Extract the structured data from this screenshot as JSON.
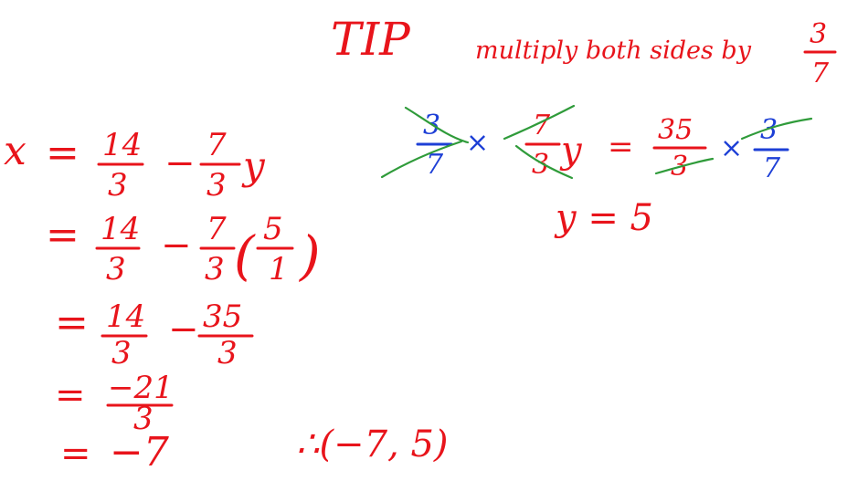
{
  "tip": {
    "title": "TIP",
    "text": "multiply both sides by",
    "fraction": {
      "numerator": "3",
      "denominator": "7"
    }
  },
  "y_solution": {
    "lhs_fraction": {
      "numerator": "3",
      "denominator": "7"
    },
    "times": "×",
    "coeff_fraction": {
      "numerator": "7",
      "denominator": "3"
    },
    "variable": "y",
    "equals": "=",
    "rhs_fraction": {
      "numerator": "35",
      "denominator": "3"
    },
    "rhs_times": "×",
    "rhs_mult_fraction": {
      "numerator": "3",
      "denominator": "7"
    },
    "result": "y = 5"
  },
  "x_solution": {
    "line1": {
      "lhs": "x",
      "equals": "=",
      "frac_a": {
        "numerator": "14",
        "denominator": "3"
      },
      "minus": "−",
      "frac_b": {
        "numerator": "7",
        "denominator": "3"
      },
      "variable": "y"
    },
    "line2": {
      "equals": "=",
      "frac_a": {
        "numerator": "14",
        "denominator": "3"
      },
      "minus": "−",
      "frac_b": {
        "numerator": "7",
        "denominator": "3"
      },
      "paren_open": "(",
      "frac_c": {
        "numerator": "5",
        "denominator": "1"
      },
      "paren_close": ")"
    },
    "line3": {
      "equals": "=",
      "frac_a": {
        "numerator": "14",
        "denominator": "3"
      },
      "minus": "−",
      "frac_b": {
        "numerator": "35",
        "denominator": "3"
      }
    },
    "line4": {
      "equals": "=",
      "frac": {
        "numerator": "−21",
        "denominator": "3"
      }
    },
    "line5": {
      "equals": "=",
      "value": "−7"
    }
  },
  "conclusion": "∴(−7, 5)",
  "colors": {
    "main": "#e8141b",
    "multiplier": "#1d3fd6",
    "strike": "#2f9b3a"
  }
}
